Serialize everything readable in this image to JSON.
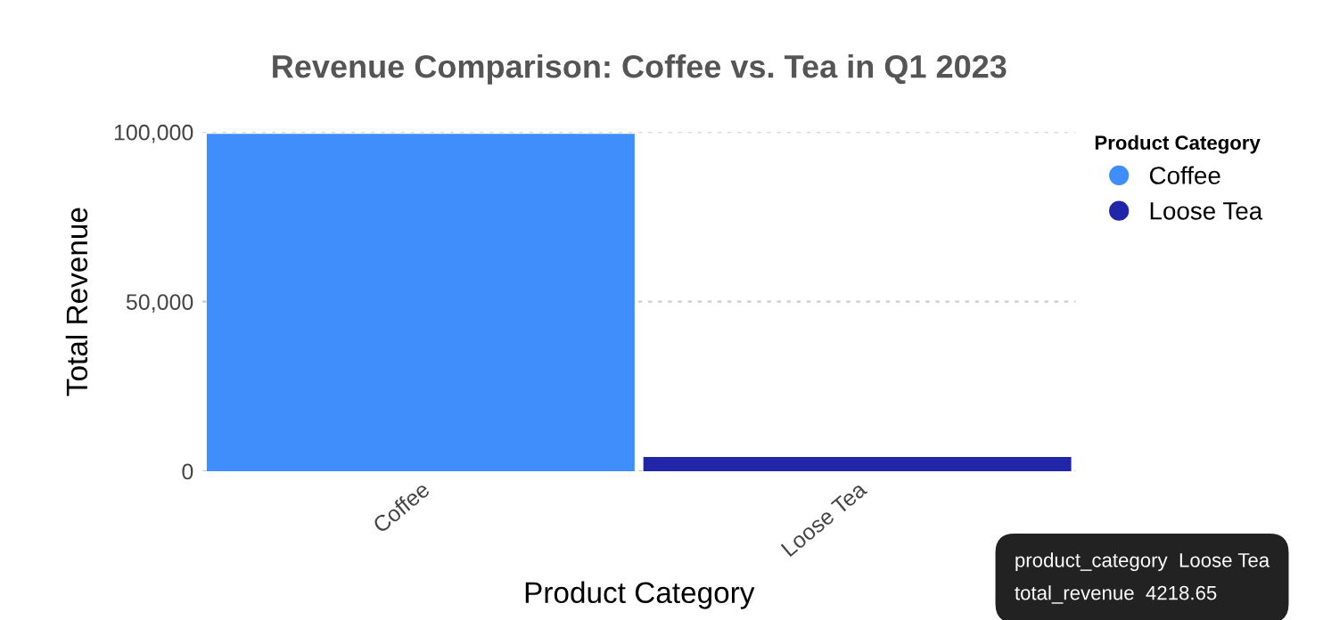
{
  "chart_data": {
    "type": "bar",
    "title": "Revenue Comparison: Coffee vs. Tea in Q1 2023",
    "xlabel": "Product Category",
    "ylabel": "Total Revenue",
    "legend_title": "Product Category",
    "categories": [
      "Coffee",
      "Loose Tea"
    ],
    "series": [
      {
        "name": "Coffee",
        "color": "#3f8efc",
        "values": [
          99500,
          null
        ]
      },
      {
        "name": "Loose Tea",
        "color": "#2125a8",
        "values": [
          null,
          4218.65
        ]
      }
    ],
    "ylim": [
      0,
      100000
    ],
    "yticks": [
      {
        "value": 0,
        "label": "0"
      },
      {
        "value": 50000,
        "label": "50,000"
      },
      {
        "value": 100000,
        "label": "100,000"
      }
    ],
    "grid": "y",
    "legend": "top right",
    "annotations": [
      "product_category  Loose Tea\ntotal_revenue  4218.65"
    ]
  }
}
